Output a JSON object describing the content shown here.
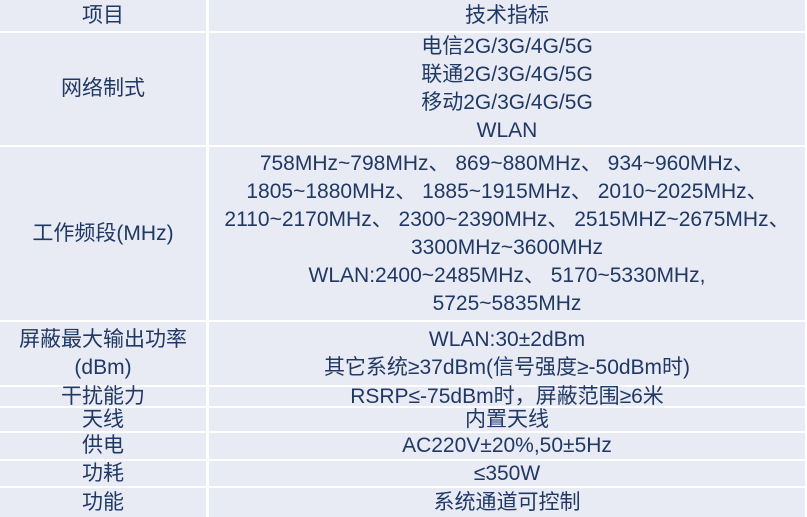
{
  "colors": {
    "table_background": "#e9ebf4",
    "grid_lines": "#ffffff",
    "text": "#1f3864"
  },
  "table": {
    "header": {
      "item_col": "项目",
      "spec_col": "技术指标"
    },
    "rows": [
      {
        "label_lines": [
          "网络制式"
        ],
        "value_lines": [
          "电信2G/3G/4G/5G",
          "联通2G/3G/4G/5G",
          "移动2G/3G/4G/5G",
          "WLAN"
        ]
      },
      {
        "label_lines": [
          "工作频段(MHz)"
        ],
        "value_lines": [
          "758MHz~798MHz、 869~880MHz、 934~960MHz、",
          "1805~1880MHz、 1885~1915MHz、 2010~2025MHz、",
          "2110~2170MHz、 2300~2390MHz、 2515MHZ~2675MHz、",
          "3300MHz~3600MHz",
          "WLAN:2400~2485MHz、 5170~5330MHz,",
          "5725~5835MHz"
        ]
      },
      {
        "label_lines": [
          "屏蔽最大输出功率",
          "(dBm)"
        ],
        "value_lines": [
          "WLAN:30±2dBm",
          "其它系统≥37dBm(信号强度≥-50dBm时)"
        ]
      },
      {
        "label_lines": [
          "干扰能力"
        ],
        "value_lines": [
          "RSRP≤-75dBm时，屏蔽范围≥6米"
        ]
      },
      {
        "label_lines": [
          "天线"
        ],
        "value_lines": [
          "内置天线"
        ]
      },
      {
        "label_lines": [
          "供电"
        ],
        "value_lines": [
          "AC220V±20%,50±5Hz"
        ]
      },
      {
        "label_lines": [
          "功耗"
        ],
        "value_lines": [
          "≤350W"
        ]
      },
      {
        "label_lines": [
          "功能"
        ],
        "value_lines": [
          "系统通道可控制"
        ]
      }
    ]
  }
}
